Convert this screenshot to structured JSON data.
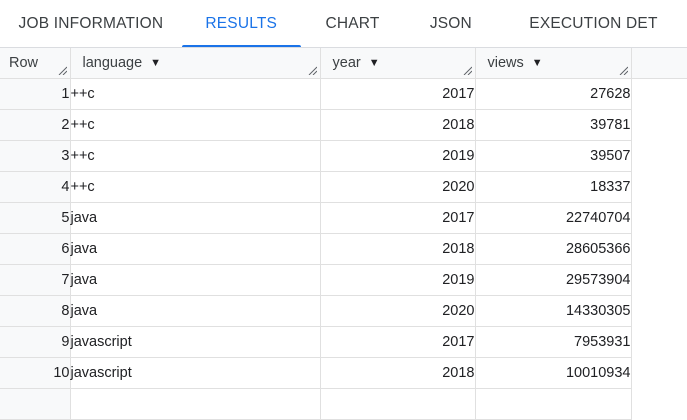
{
  "tabs": [
    {
      "label": "JOB INFORMATION",
      "active": false
    },
    {
      "label": "RESULTS",
      "active": true
    },
    {
      "label": "CHART",
      "active": false
    },
    {
      "label": "JSON",
      "active": false
    },
    {
      "label": "EXECUTION DET",
      "active": false
    }
  ],
  "columns": {
    "row": "Row",
    "language": "language",
    "year": "year",
    "views": "views"
  },
  "rows": [
    {
      "row": "1",
      "language": "++c",
      "year": "2017",
      "views": "27628"
    },
    {
      "row": "2",
      "language": "++c",
      "year": "2018",
      "views": "39781"
    },
    {
      "row": "3",
      "language": "++c",
      "year": "2019",
      "views": "39507"
    },
    {
      "row": "4",
      "language": "++c",
      "year": "2020",
      "views": "18337"
    },
    {
      "row": "5",
      "language": "java",
      "year": "2017",
      "views": "22740704"
    },
    {
      "row": "6",
      "language": "java",
      "year": "2018",
      "views": "28605366"
    },
    {
      "row": "7",
      "language": "java",
      "year": "2019",
      "views": "29573904"
    },
    {
      "row": "8",
      "language": "java",
      "year": "2020",
      "views": "14330305"
    },
    {
      "row": "9",
      "language": "javascript",
      "year": "2017",
      "views": "7953931"
    },
    {
      "row": "10",
      "language": "javascript",
      "year": "2018",
      "views": "10010934"
    }
  ],
  "colors": {
    "accent": "#1a73e8",
    "header_bg": "#f8f9fa",
    "border": "#e0e0e0"
  },
  "icons": {
    "sort": "arrow-drop-down-icon",
    "resize": "column-resize-handle-icon"
  }
}
